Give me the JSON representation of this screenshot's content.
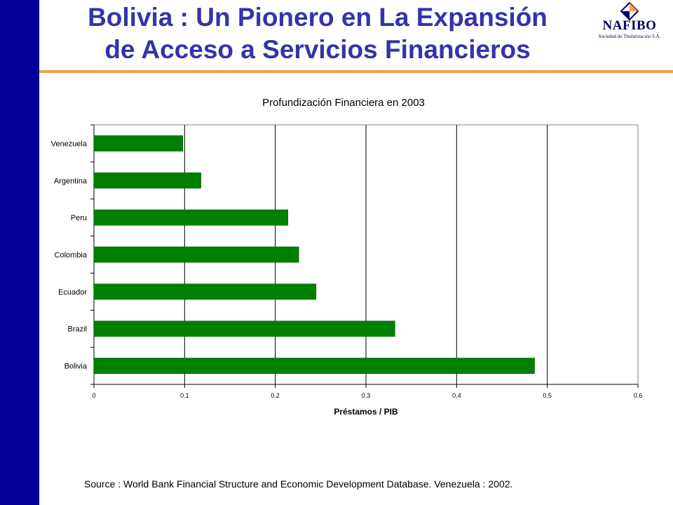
{
  "slide": {
    "title_line1": "Bolivia : Un Pionero en La Expansión",
    "title_line2": "de Acceso a Servicios Financieros",
    "source_note": "Source : World Bank Financial Structure and Economic Development Database. Venezuela : 2002."
  },
  "logo": {
    "name": "NAFIBO",
    "tagline": "Sociedad de Titularización S.A."
  },
  "colors": {
    "left_bar": "#000099",
    "title_text": "#3333aa",
    "title_rule": "#f5a04a",
    "bar_fill": "#008000"
  },
  "chart_data": {
    "type": "bar",
    "orientation": "horizontal",
    "title": "Profundización Financiera en 2003",
    "xlabel": "Préstamos / PIB",
    "ylabel": "",
    "categories": [
      "Venezuela",
      "Argentina",
      "Peru",
      "Colombia",
      "Ecuador",
      "Brazil",
      "Bolivia"
    ],
    "values": [
      0.098,
      0.118,
      0.214,
      0.226,
      0.245,
      0.332,
      0.486
    ],
    "xlim": [
      0,
      0.6
    ],
    "xticks": [
      "0",
      "0.1",
      "0.2",
      "0.3",
      "0.4",
      "0.5",
      "0.6"
    ],
    "grid": "vertical",
    "legend": "none"
  }
}
